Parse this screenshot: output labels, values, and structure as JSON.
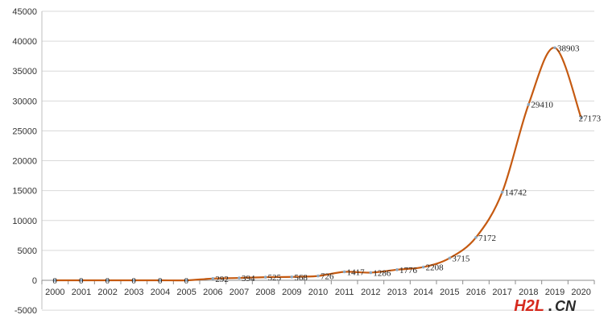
{
  "chart_data": {
    "type": "line",
    "title": "",
    "xlabel": "",
    "ylabel": "",
    "categories": [
      "2000",
      "2001",
      "2002",
      "2003",
      "2004",
      "2005",
      "2006",
      "2007",
      "2008",
      "2009",
      "2010",
      "2011",
      "2012",
      "2013",
      "2014",
      "2015",
      "2016",
      "2017",
      "2018",
      "2019",
      "2020"
    ],
    "series": [
      {
        "values": [
          0,
          0,
          0,
          0,
          0,
          0,
          292,
          394,
          525,
          568,
          726,
          1417,
          1286,
          1776,
          2208,
          3715,
          7172,
          14742,
          29410,
          38903,
          27173
        ],
        "color": "#c55a11"
      }
    ],
    "data_labels": [
      "0",
      "0",
      "0",
      "0",
      "0",
      "0",
      "292",
      "394",
      "525",
      "568",
      "726",
      "1417",
      "1286",
      "1776",
      "2208",
      "3715",
      "7172",
      "14742",
      "29410",
      "38903",
      "27173"
    ],
    "ylim": [
      -5000,
      45000
    ],
    "yticks": [
      -5000,
      0,
      5000,
      10000,
      15000,
      20000,
      25000,
      30000,
      35000,
      40000,
      45000
    ],
    "ytick_labels": [
      "-5000",
      "0",
      "5000",
      "10000",
      "15000",
      "20000",
      "25000",
      "30000",
      "35000",
      "40000",
      "45000"
    ],
    "grid": true,
    "legend": "none"
  },
  "watermark": {
    "part1": "H2L",
    "dot": ".",
    "part2": "CN"
  }
}
